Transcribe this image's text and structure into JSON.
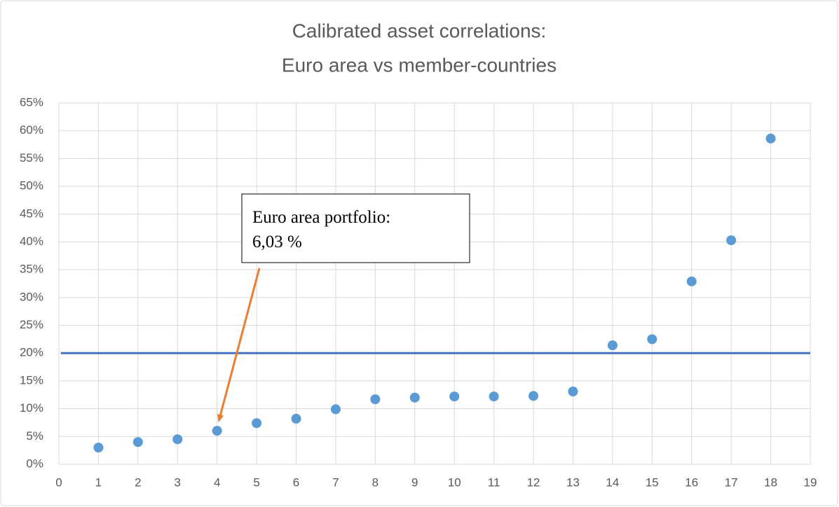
{
  "chart_data": {
    "type": "scatter",
    "title": [
      "Calibrated asset correlations:",
      "Euro area vs member-countries"
    ],
    "x": [
      1,
      2,
      3,
      4,
      5,
      6,
      7,
      8,
      9,
      10,
      11,
      12,
      13,
      14,
      15,
      16,
      17,
      18
    ],
    "series": [
      {
        "color": "#5b9bd5",
        "values": [
          3.0,
          4.0,
          4.5,
          6.03,
          7.4,
          8.2,
          9.9,
          11.7,
          12.0,
          12.2,
          12.2,
          12.3,
          13.1,
          21.4,
          22.5,
          32.9,
          40.3,
          58.6
        ]
      }
    ],
    "xlim": [
      0,
      19
    ],
    "xticks": [
      0,
      1,
      2,
      3,
      4,
      5,
      6,
      7,
      8,
      9,
      10,
      11,
      12,
      13,
      14,
      15,
      16,
      17,
      18,
      19
    ],
    "ylim": [
      0,
      65
    ],
    "yticks": [
      {
        "value": 0,
        "label": "0%"
      },
      {
        "value": 5,
        "label": "5%"
      },
      {
        "value": 10,
        "label": "10%"
      },
      {
        "value": 15,
        "label": "15%"
      },
      {
        "value": 20,
        "label": "20%"
      },
      {
        "value": 25,
        "label": "25%"
      },
      {
        "value": 30,
        "label": "30%"
      },
      {
        "value": 35,
        "label": "35%"
      },
      {
        "value": 40,
        "label": "40%"
      },
      {
        "value": 45,
        "label": "45%"
      },
      {
        "value": 50,
        "label": "50%"
      },
      {
        "value": 55,
        "label": "55%"
      },
      {
        "value": 60,
        "label": "60%"
      },
      {
        "value": 65,
        "label": "65%"
      }
    ],
    "grid": true,
    "reference_line": {
      "value": 20,
      "color": "#4472c4"
    },
    "annotation": {
      "text": [
        "Euro area portfolio:",
        "6,03 %"
      ],
      "color": "#ed7d31"
    }
  }
}
